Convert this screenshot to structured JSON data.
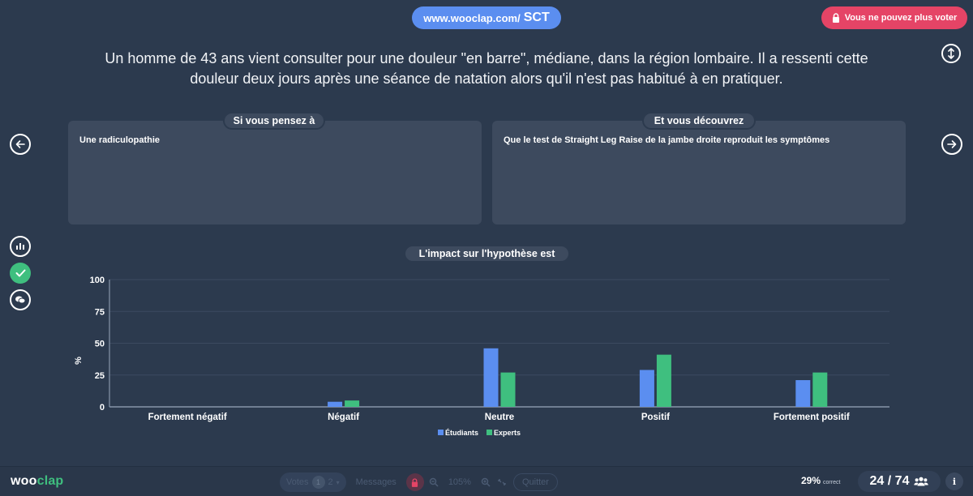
{
  "header": {
    "url_prefix": "www.wooclap.com/",
    "event_code": "SCT",
    "vote_status": "Vous ne pouvez plus voter"
  },
  "question": {
    "line1": "Un homme de 43 ans vient consulter pour une douleur \"en barre\", médiane, dans la région lombaire. Il a ressenti cette",
    "line2": "douleur deux jours après une séance de natation alors qu'il n'est pas habitué à en pratiquer."
  },
  "panels": {
    "left_label": "Si vous pensez à",
    "left_text": "Une radiculopathie",
    "right_label": "Et vous découvrez",
    "right_text": "Que le test de Straight Leg Raise de la jambe droite reproduit les symptômes"
  },
  "chart_title": "L'impact sur l'hypothèse est",
  "chart_data": {
    "type": "bar",
    "categories": [
      "Fortement négatif",
      "Négatif",
      "Neutre",
      "Positif",
      "Fortement positif"
    ],
    "series": [
      {
        "name": "Étudiants",
        "values": [
          0,
          4,
          46,
          29,
          21
        ],
        "color": "#5b8ef0"
      },
      {
        "name": "Experts",
        "values": [
          0,
          5,
          27,
          41,
          27
        ],
        "color": "#3fbf7f"
      }
    ],
    "ylabel": "%",
    "ylim": [
      0,
      100
    ],
    "yticks": [
      "0",
      "25",
      "50",
      "75",
      "100"
    ],
    "legend": "bottom-center",
    "grid": true
  },
  "footer": {
    "logo_w": "woo",
    "logo_c": "clap",
    "votes_label": "Votes",
    "votes_count": "1",
    "votes_total": "2",
    "messages_label": "Messages",
    "zoom": "105%",
    "quit_label": "Quitter",
    "score": "29%",
    "score_label": "correct",
    "participants": "24 / 74"
  },
  "icons": {
    "lock": "lock-icon",
    "prev": "arrow-left-icon",
    "next": "arrow-right-icon",
    "results": "bar-chart-icon",
    "correct": "check-icon",
    "comments": "chat-bubbles-icon",
    "info": "info-icon",
    "users": "users-icon"
  },
  "colors": {
    "background": "#2c3a4e",
    "panel": "#3d4a5e",
    "accent_blue": "#5b8ef0",
    "accent_green": "#3fbf7f",
    "alert_red": "#e54466"
  }
}
